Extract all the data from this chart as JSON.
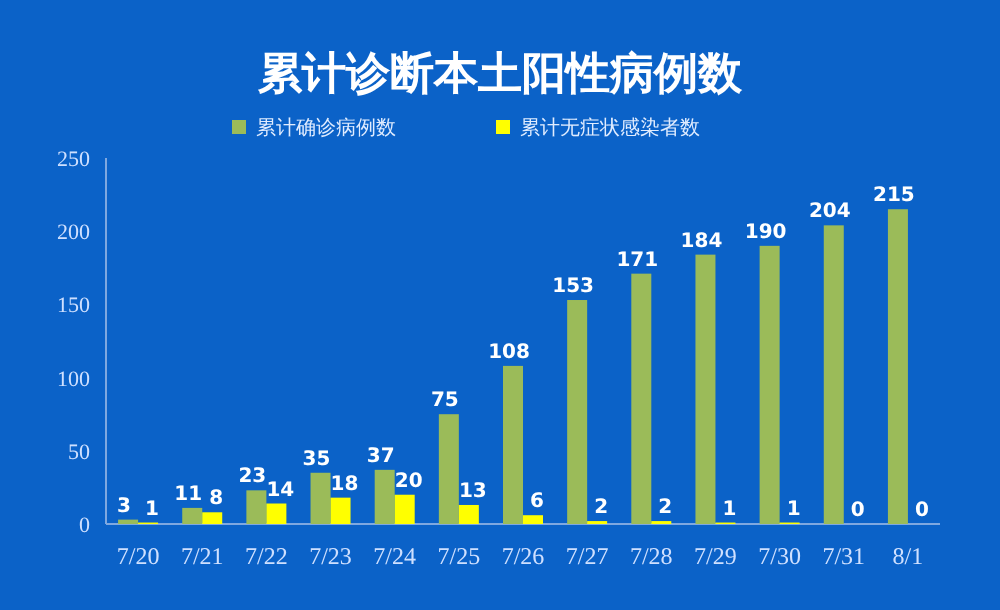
{
  "chart_data": {
    "type": "bar",
    "title": "累计诊断本土阳性病例数",
    "categories": [
      "7/20",
      "7/21",
      "7/22",
      "7/23",
      "7/24",
      "7/25",
      "7/26",
      "7/27",
      "7/28",
      "7/29",
      "7/30",
      "7/31",
      "8/1"
    ],
    "series": [
      {
        "name": "累计确诊病例数",
        "color": "#9bbb59",
        "values": [
          3,
          11,
          23,
          35,
          37,
          75,
          108,
          153,
          171,
          184,
          190,
          204,
          215
        ]
      },
      {
        "name": "累计无症状感染者数",
        "color": "#ffff00",
        "values": [
          1,
          8,
          14,
          18,
          20,
          13,
          6,
          2,
          2,
          1,
          1,
          0,
          0
        ]
      }
    ],
    "ylim": [
      0,
      250
    ],
    "yticks": [
      0,
      50,
      100,
      150,
      200,
      250
    ],
    "data_labels": true,
    "legend": "top",
    "grid": false
  }
}
